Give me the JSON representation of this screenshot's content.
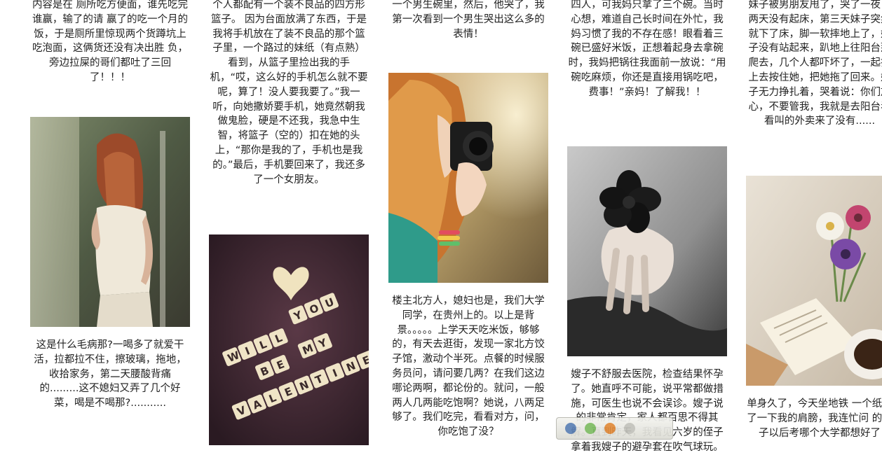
{
  "colors": {
    "page_bg": "#ffffff",
    "text": "#222222"
  },
  "posts": [
    {
      "top_text": "内容是在 厕所吃方便面，谁先吃完谁赢，输了的请 赢了的吃一个月的饭，于是厕所里惊现两个货蹲坑上吃泡面，这俩货还没有决出胜 负，旁边拉屎的哥们都吐了三回了！！！",
      "image": "girl-white-blouse-photo",
      "bottom_text": "这是什么毛病那?一喝多了就爱干活，拉都拉不住，擦玻璃，拖地，收拾家务，第二天腰酸背痛的.........这不媳妇又弄了几个好菜，喝是不喝那?..........."
    },
    {
      "top_text": "个人都配有一个装不良品的四方形篮子。 因为台面放满了东西，于是我将手机放在了装不良品的那个篮子里，一个路过的妹纸（有点熟）看到，从篮子里捡出我的手机，“哎，这么好的手机怎么就不要呢，算了！没人要我要了。”我一听，向她撒娇要手机，她竟然朝我做鬼脸，硬是不还我，我急中生智，将篮子（空的）扣在她的头上，“那你是我的了，手机也是我的。”最后，手机要回来了，我还多了一个女朋友。",
      "image": "will-you-be-my-valentine-tiles-photo",
      "image_words": [
        "WILL",
        "YOU",
        "BE",
        "MY",
        "VALENTINE?"
      ]
    },
    {
      "top_text": "一个男生碗里，然后，他哭了，我第一次看到一个男生哭出这么多的表情！",
      "image": "girl-with-camera-photo",
      "bottom_text": "楼主北方人，媳妇也是，我们大学同学，在贵州上的。以上是背景。。。。。上学天天吃米饭，够够的，有天去逛街，发现一家北方饺子馆，激动个半死。点餐的时候服务员问，请问要几两？在我们这边哪论两啊，都论份的。就问，一般两人几两能吃饱啊？她说，八两足够了。我们吃完，看看对方，问，你吃饱了没？"
    },
    {
      "top_text": "四人，可我妈只拿了三个碗。当时心想，难道自己长时间在外忙，我妈习惯了我的不存在感！眼看着三碗已盛好米饭，正想着起身去拿碗时，我妈把锅往我面前一放说：“用碗吃麻烦，你还是直接用锅吃吧，费事！”亲妈！了解我！！",
      "image": "hand-with-black-flower-photo",
      "bottom_text": "嫂子不舒服去医院，检查结果怀孕了。她直呼不可能，说平常都做措施，可医生也说不会误诊。嫂子说的非常肯定，家人都百思不得其解。直到昨天，我看见六岁的侄子拿着我嫂子的避孕套在吹气球玩。"
    },
    {
      "top_text": "妹子被男朋友甩了，哭了一夜，两天没有起床，第三天妹子突然就下了床，脚一软摔地上了，妹子没有站起来，趴地上往阳台那爬去，几个人都吓坏了，一起扑上去按住她，把她拖了回来。妹子无力挣扎着，哭着说：你们放心，不要管我，我就是去阳台看看叫的外卖来了没有......",
      "image": "flowers-and-book-photo",
      "bottom_text": "单身久了，今天坐地铁 一个纸蹭了一下我的肩膀，我连忙问 的孩子以后考哪个大学都想好了"
    }
  ]
}
